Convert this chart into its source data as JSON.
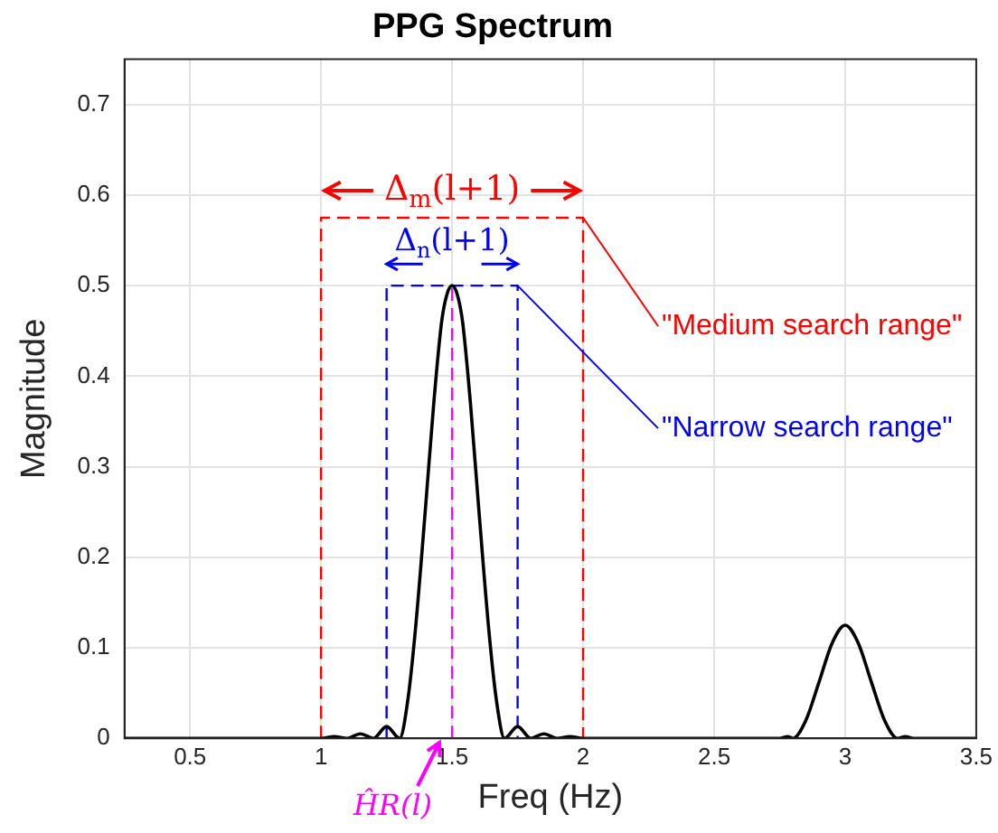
{
  "chart_data": {
    "type": "line",
    "title": "PPG Spectrum",
    "xlabel": "Freq (Hz)",
    "ylabel": "Magnitude",
    "xlim": [
      0.25,
      3.5
    ],
    "xticks": [
      0.5,
      1,
      1.5,
      2,
      2.5,
      3,
      3.5
    ],
    "ylim": [
      0,
      0.75
    ],
    "yticks": [
      0,
      0.1,
      0.2,
      0.3,
      0.4,
      0.5,
      0.6,
      0.7
    ],
    "grid": true,
    "legend": false,
    "marker": "none",
    "series": [
      {
        "color": "#000000",
        "line_style": "solid",
        "x": [
          0.25,
          0.5,
          0.75,
          1.0,
          1.05,
          1.1,
          1.15,
          1.2,
          1.25,
          1.3,
          1.33,
          1.36,
          1.4,
          1.43,
          1.46,
          1.48,
          1.5,
          1.52,
          1.54,
          1.57,
          1.6,
          1.64,
          1.67,
          1.7,
          1.75,
          1.8,
          1.85,
          1.9,
          1.95,
          2.0,
          2.5,
          2.75,
          2.78,
          2.8,
          2.85,
          2.9,
          2.95,
          3.0,
          3.05,
          3.1,
          3.15,
          3.2,
          3.23,
          3.26,
          3.5
        ],
        "values": [
          0,
          0,
          0,
          0,
          0.002,
          0,
          0.005,
          0,
          0.013,
          0,
          0.04,
          0.12,
          0.26,
          0.37,
          0.46,
          0.49,
          0.5,
          0.49,
          0.46,
          0.37,
          0.26,
          0.12,
          0.04,
          0,
          0.013,
          0,
          0.005,
          0,
          0.002,
          0,
          0,
          0,
          0.002,
          0,
          0.02,
          0.062,
          0.105,
          0.125,
          0.105,
          0.062,
          0.02,
          0,
          0.002,
          0,
          0
        ]
      },
      {
        "color": "#ff0000",
        "line_style": "dashed",
        "x": [
          1,
          1,
          2,
          2
        ],
        "values": [
          0,
          0.575,
          0.575,
          0
        ]
      },
      {
        "color": "#0000ff",
        "line_style": "dashed",
        "x": [
          1.25,
          1.25,
          1.75,
          1.75
        ],
        "values": [
          0,
          0.5,
          0.5,
          0
        ]
      },
      {
        "color": "#ff00ff",
        "line_style": "dashed",
        "x": [
          1.5,
          1.5
        ],
        "values": [
          0,
          0.5
        ]
      }
    ],
    "annotations": [
      "Δ$_{m}$(l+1)",
      "Δ$_{n}$(l+1)",
      {
        "text": "\"Medium search range\"",
        "x": 2,
        "y": 0.575
      },
      {
        "text": "\"Narrow search range\"",
        "x": 1.75,
        "y": 0.5
      },
      "ĤR(l)"
    ]
  }
}
